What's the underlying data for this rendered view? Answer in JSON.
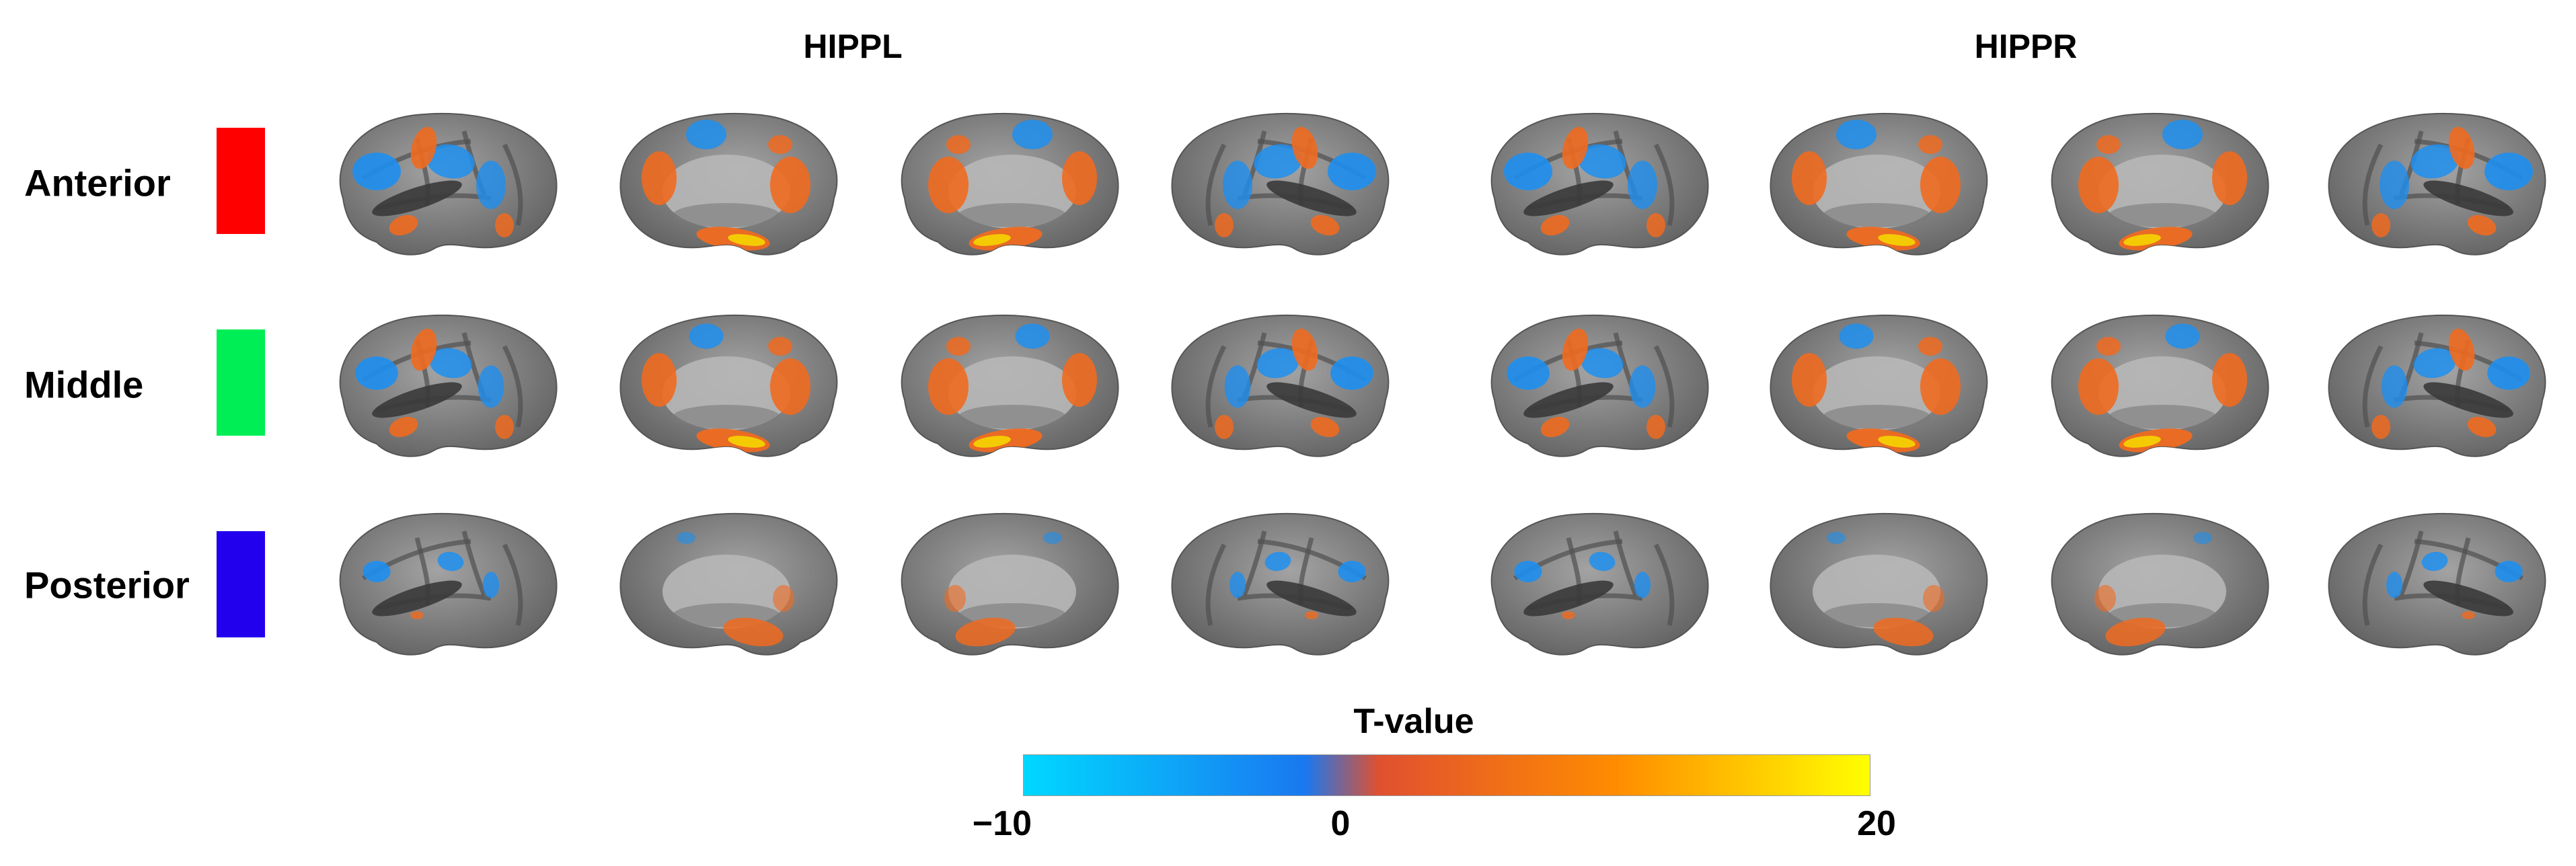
{
  "columns": {
    "left": "HIPPL",
    "right": "HIPPR"
  },
  "rows": [
    {
      "label": "Anterior",
      "color": "#ff0000"
    },
    {
      "label": "Middle",
      "color": "#00ee55"
    },
    {
      "label": "Posterior",
      "color": "#2200ee"
    }
  ],
  "views": [
    "lateral",
    "medial",
    "medial",
    "lateral"
  ],
  "colorbar": {
    "title": "T-value",
    "min_label": "−10",
    "mid_label": "0",
    "max_label": "20",
    "range": [
      -10,
      20
    ],
    "colors": [
      "#00d8ff",
      "#1a78f0",
      "#e05030",
      "#ff8c00",
      "#ffff00"
    ]
  },
  "colors": {
    "cortex": "#8f8f8f",
    "negative": "#1e8fef",
    "positive": "#f06a20",
    "peak": "#f5d600"
  }
}
